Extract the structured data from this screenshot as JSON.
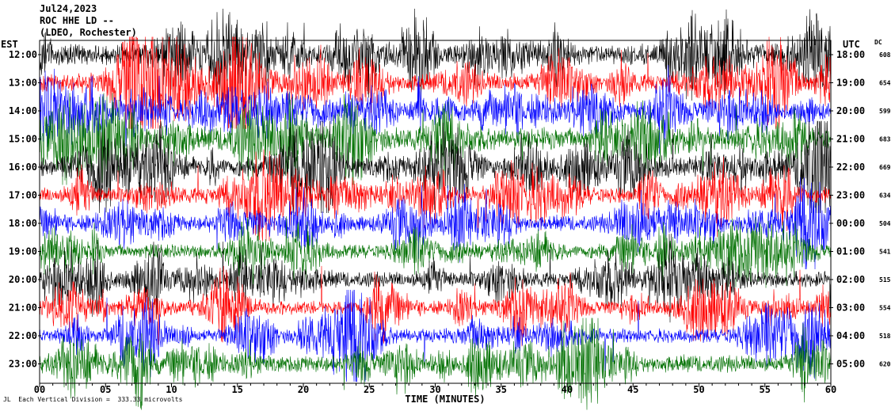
{
  "header": {
    "date": "Jul24,2023",
    "station": "ROC HHE LD --",
    "location": "(LDEO, Rochester)"
  },
  "labels": {
    "left_tz": "EST",
    "right_tz": "UTC",
    "dc_header": "DC",
    "xlabel": "TIME (MINUTES)",
    "scale_note": "Each Vertical Division =  333.33 microvolts",
    "corner_mark": "JL"
  },
  "colors": {
    "cycle": [
      "#000000",
      "#ff0000",
      "#0000ff",
      "#007000"
    ]
  },
  "chart_data": {
    "type": "line",
    "xlabel": "TIME (MINUTES)",
    "xlim": [
      0,
      60
    ],
    "xticks": [
      "00",
      "05",
      "10",
      "15",
      "20",
      "25",
      "30",
      "35",
      "40",
      "45",
      "50",
      "55",
      "60"
    ],
    "rows": [
      {
        "est": "12:00",
        "utc": "18:00",
        "dc": "608",
        "color": "#000000",
        "amp": 1.3
      },
      {
        "est": "13:00",
        "utc": "19:00",
        "dc": "654",
        "color": "#ff0000",
        "amp": 1.2
      },
      {
        "est": "14:00",
        "utc": "20:00",
        "dc": "599",
        "color": "#0000ff",
        "amp": 1.0
      },
      {
        "est": "15:00",
        "utc": "21:00",
        "dc": "683",
        "color": "#007000",
        "amp": 1.4
      },
      {
        "est": "16:00",
        "utc": "22:00",
        "dc": "669",
        "color": "#000000",
        "amp": 1.2
      },
      {
        "est": "17:00",
        "utc": "23:00",
        "dc": "634",
        "color": "#ff0000",
        "amp": 1.0
      },
      {
        "est": "18:00",
        "utc": "00:00",
        "dc": "504",
        "color": "#0000ff",
        "amp": 1.0
      },
      {
        "est": "19:00",
        "utc": "01:00",
        "dc": "541",
        "color": "#007000",
        "amp": 0.9
      },
      {
        "est": "20:00",
        "utc": "02:00",
        "dc": "515",
        "color": "#000000",
        "amp": 1.0
      },
      {
        "est": "21:00",
        "utc": "03:00",
        "dc": "554",
        "color": "#ff0000",
        "amp": 0.9
      },
      {
        "est": "22:00",
        "utc": "04:00",
        "dc": "518",
        "color": "#0000ff",
        "amp": 0.9
      },
      {
        "est": "23:00",
        "utc": "05:00",
        "dc": "620",
        "color": "#007000",
        "amp": 1.1
      }
    ]
  }
}
